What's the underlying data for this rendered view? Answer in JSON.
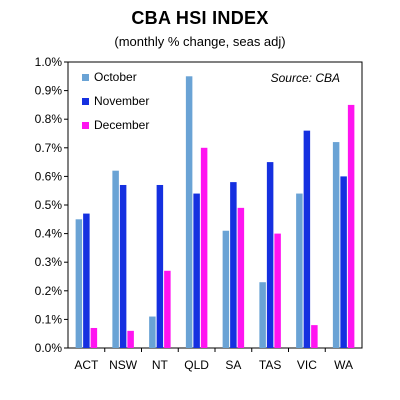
{
  "chart_data": {
    "type": "bar",
    "title": "CBA HSI INDEX",
    "subtitle": "(monthly % change, seas adj)",
    "source": "Source: CBA",
    "categories": [
      "ACT",
      "NSW",
      "NT",
      "QLD",
      "SA",
      "TAS",
      "VIC",
      "WA"
    ],
    "series": [
      {
        "name": "October",
        "color": "#6aa3d5",
        "values": [
          0.45,
          0.62,
          0.11,
          0.95,
          0.41,
          0.23,
          0.54,
          0.72
        ]
      },
      {
        "name": "November",
        "color": "#1530e0",
        "values": [
          0.47,
          0.57,
          0.57,
          0.54,
          0.58,
          0.65,
          0.76,
          0.6
        ]
      },
      {
        "name": "December",
        "color": "#ff14f0",
        "values": [
          0.07,
          0.06,
          0.27,
          0.7,
          0.49,
          0.4,
          0.08,
          0.85
        ]
      }
    ],
    "ylim": [
      0,
      1.0
    ],
    "yticks": [
      "0.0%",
      "0.1%",
      "0.2%",
      "0.3%",
      "0.4%",
      "0.5%",
      "0.6%",
      "0.7%",
      "0.8%",
      "0.9%",
      "1.0%"
    ],
    "legend_position": "top-left",
    "grid": false
  }
}
